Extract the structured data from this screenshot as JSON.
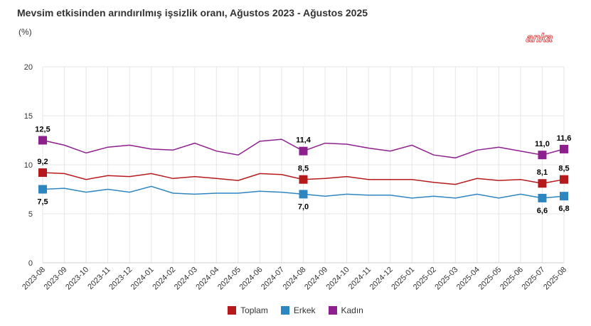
{
  "title": "Mevsim etkisinden arındırılmış işsizlik oranı, Ağustos 2023 - Ağustos 2025",
  "unit": "(%)",
  "logo": "anka",
  "chart_data": {
    "type": "line",
    "title": "Mevsim etkisinden arındırılmış işsizlik oranı, Ağustos 2023 - Ağustos 2025",
    "ylabel": "(%)",
    "xlabel": "",
    "ylim": [
      0,
      20
    ],
    "yticks": [
      "0",
      "5",
      "10",
      "15",
      "20"
    ],
    "grid": true,
    "legend_position": "bottom",
    "categories": [
      "2023-08",
      "2023-09",
      "2023-10",
      "2023-11",
      "2023-12",
      "2024-01",
      "2024-02",
      "2024-03",
      "2024-04",
      "2024-05",
      "2024-06",
      "2024-07",
      "2024-08",
      "2024-09",
      "2024-10",
      "2024-11",
      "2024-12",
      "2025-01",
      "2025-02",
      "2025-03",
      "2025-04",
      "2025-05",
      "2025-06",
      "2025-07",
      "2025-08"
    ],
    "series": [
      {
        "name": "Toplam",
        "color": "#b5191c",
        "values": [
          9.2,
          9.1,
          8.5,
          8.9,
          8.8,
          9.1,
          8.6,
          8.8,
          8.6,
          8.4,
          9.1,
          9.0,
          8.5,
          8.6,
          8.8,
          8.5,
          8.5,
          8.5,
          8.2,
          8.0,
          8.6,
          8.4,
          8.5,
          8.1,
          8.5
        ],
        "labels": [
          {
            "index": 0,
            "text": "9,2"
          },
          {
            "index": 12,
            "text": "8,5"
          },
          {
            "index": 23,
            "text": "8,1"
          },
          {
            "index": 24,
            "text": "8,5"
          }
        ]
      },
      {
        "name": "Erkek",
        "color": "#2e86c1",
        "values": [
          7.5,
          7.6,
          7.2,
          7.5,
          7.2,
          7.8,
          7.1,
          7.0,
          7.1,
          7.1,
          7.3,
          7.2,
          7.0,
          6.8,
          7.0,
          6.9,
          6.9,
          6.6,
          6.8,
          6.6,
          7.0,
          6.6,
          7.0,
          6.6,
          6.8
        ],
        "labels": [
          {
            "index": 0,
            "text": "7,5"
          },
          {
            "index": 12,
            "text": "7,0"
          },
          {
            "index": 23,
            "text": "6,6"
          },
          {
            "index": 24,
            "text": "6,8"
          }
        ]
      },
      {
        "name": "Kadın",
        "color": "#8e1f8e",
        "values": [
          12.5,
          12.0,
          11.2,
          11.8,
          12.0,
          11.6,
          11.5,
          12.2,
          11.4,
          11.0,
          12.4,
          12.6,
          11.4,
          12.2,
          12.1,
          11.7,
          11.4,
          12.0,
          11.0,
          10.7,
          11.5,
          11.8,
          11.4,
          11.0,
          11.6
        ],
        "labels": [
          {
            "index": 0,
            "text": "12,5"
          },
          {
            "index": 12,
            "text": "11,4"
          },
          {
            "index": 23,
            "text": "11,0"
          },
          {
            "index": 24,
            "text": "11,6"
          }
        ]
      }
    ]
  }
}
